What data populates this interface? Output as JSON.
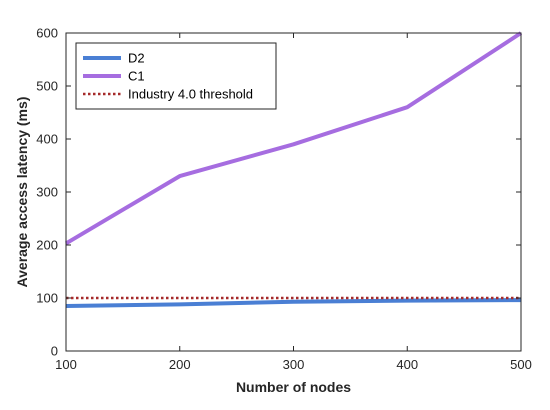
{
  "chart_data": {
    "type": "line",
    "xlabel": "Number of nodes",
    "ylabel": "Average access latency (ms)",
    "xlim": [
      100,
      500
    ],
    "ylim": [
      0,
      600
    ],
    "xticks": [
      100,
      200,
      300,
      400,
      500
    ],
    "yticks": [
      0,
      100,
      200,
      300,
      400,
      500,
      600
    ],
    "grid": false,
    "legend_position": "top-left",
    "x": [
      100,
      200,
      300,
      400,
      500
    ],
    "series": [
      {
        "name": "D2",
        "values": [
          85,
          88,
          93,
          95,
          96
        ],
        "color": "#4a7fd4",
        "style": "solid"
      },
      {
        "name": "C1",
        "values": [
          203,
          330,
          390,
          460,
          600
        ],
        "color": "#a66de0",
        "style": "solid"
      },
      {
        "name": "Industry 4.0 threshold",
        "values": [
          100,
          100,
          100,
          100,
          100
        ],
        "color": "#a52a2a",
        "style": "dotted"
      }
    ]
  }
}
